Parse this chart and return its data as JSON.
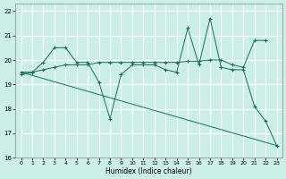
{
  "xlabel": "Humidex (Indice chaleur)",
  "background_color": "#cceee8",
  "line_color": "#1a6b5a",
  "grid_color": "#ffffff",
  "xlim": [
    -0.5,
    23.5
  ],
  "ylim": [
    16,
    22.3
  ],
  "xticks": [
    0,
    1,
    2,
    3,
    4,
    5,
    6,
    7,
    8,
    9,
    10,
    11,
    12,
    13,
    14,
    15,
    16,
    17,
    18,
    19,
    20,
    21,
    22,
    23
  ],
  "yticks": [
    16,
    17,
    18,
    19,
    20,
    21,
    22
  ],
  "series1_x": [
    0,
    1,
    2,
    3,
    4,
    5,
    6,
    7,
    8,
    9,
    10,
    11,
    12,
    13,
    14,
    15,
    16,
    17,
    18,
    19,
    20,
    21,
    22,
    23
  ],
  "series1_y": [
    19.4,
    19.5,
    19.9,
    20.5,
    20.5,
    19.9,
    19.9,
    19.1,
    17.6,
    19.4,
    19.8,
    19.8,
    19.8,
    19.6,
    19.5,
    21.3,
    19.8,
    21.7,
    19.7,
    19.6,
    19.6,
    18.1,
    17.5,
    16.5
  ],
  "series2_x": [
    0,
    1,
    2,
    3,
    4,
    5,
    6,
    7,
    8,
    9,
    10,
    11,
    12,
    13,
    14,
    15,
    16,
    17,
    18,
    19,
    20,
    21,
    22
  ],
  "series2_y": [
    19.5,
    19.5,
    19.6,
    19.7,
    19.8,
    19.8,
    19.8,
    19.9,
    19.9,
    19.9,
    19.9,
    19.9,
    19.9,
    19.9,
    19.9,
    19.95,
    19.95,
    20.0,
    20.0,
    19.8,
    19.7,
    20.8,
    20.8
  ],
  "series3_x": [
    0,
    23
  ],
  "series3_y": [
    19.5,
    16.5
  ]
}
